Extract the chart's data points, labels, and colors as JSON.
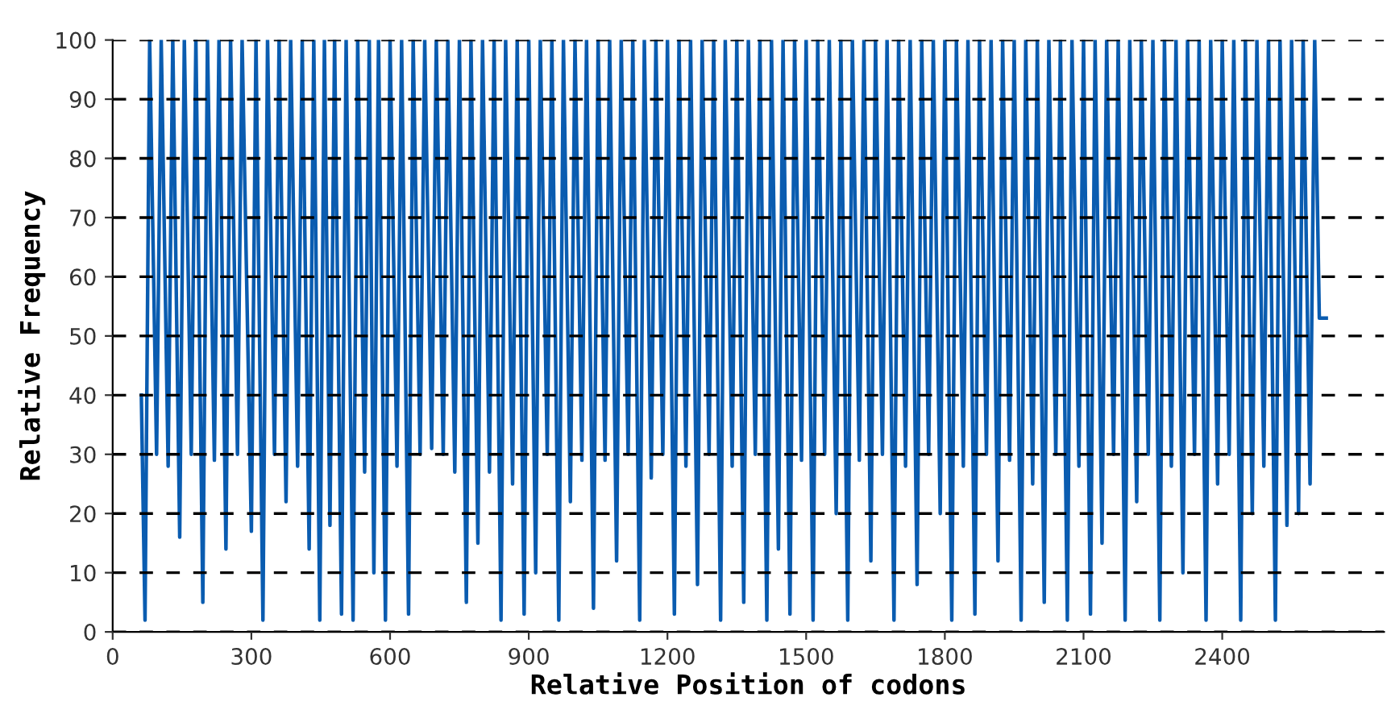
{
  "chart_data": {
    "type": "line",
    "xlabel": "Relative Position of codons",
    "ylabel": "Relative Frequency",
    "xlim": [
      0,
      2750
    ],
    "xticks": [
      0,
      300,
      600,
      900,
      1200,
      1500,
      1800,
      2100,
      2400
    ],
    "ylim": [
      0,
      100
    ],
    "yticks": [
      0,
      10,
      20,
      30,
      40,
      50,
      60,
      70,
      80,
      90,
      100
    ],
    "grid": "y",
    "marker": "none",
    "line_style": "solid",
    "series": [
      {
        "color": "#0a5cb0",
        "x": [
          62,
          70,
          80,
          95,
          105,
          120,
          130,
          145,
          155,
          170,
          180,
          195,
          205,
          220,
          230,
          245,
          255,
          270,
          280,
          300,
          310,
          325,
          335,
          350,
          360,
          375,
          385,
          400,
          410,
          425,
          435,
          448,
          458,
          470,
          480,
          495,
          505,
          520,
          530,
          545,
          555,
          565,
          575,
          590,
          600,
          615,
          625,
          640,
          650,
          665,
          675,
          690,
          700,
          715,
          725,
          740,
          750,
          765,
          775,
          790,
          800,
          815,
          825,
          840,
          850,
          865,
          875,
          890,
          900,
          915,
          925,
          940,
          950,
          965,
          975,
          990,
          1000,
          1015,
          1025,
          1040,
          1050,
          1065,
          1075,
          1090,
          1100,
          1115,
          1125,
          1140,
          1150,
          1165,
          1175,
          1190,
          1200,
          1215,
          1225,
          1240,
          1250,
          1265,
          1275,
          1290,
          1300,
          1315,
          1325,
          1340,
          1350,
          1365,
          1375,
          1390,
          1400,
          1415,
          1425,
          1440,
          1450,
          1465,
          1475,
          1490,
          1500,
          1515,
          1525,
          1540,
          1550,
          1565,
          1575,
          1590,
          1600,
          1615,
          1625,
          1640,
          1650,
          1665,
          1675,
          1690,
          1700,
          1715,
          1725,
          1740,
          1750,
          1765,
          1775,
          1790,
          1800,
          1815,
          1825,
          1840,
          1850,
          1865,
          1875,
          1890,
          1900,
          1915,
          1925,
          1940,
          1950,
          1965,
          1975,
          1990,
          2000,
          2015,
          2025,
          2040,
          2050,
          2065,
          2075,
          2090,
          2100,
          2115,
          2125,
          2140,
          2150,
          2165,
          2175,
          2190,
          2200,
          2215,
          2225,
          2240,
          2250,
          2265,
          2275,
          2290,
          2300,
          2315,
          2325,
          2340,
          2350,
          2365,
          2375,
          2390,
          2400,
          2415,
          2425,
          2440,
          2450,
          2465,
          2475,
          2490,
          2500,
          2515,
          2525,
          2540,
          2550,
          2565,
          2575,
          2590,
          2600,
          2610,
          2625
        ],
        "values": [
          40,
          2,
          100,
          30,
          100,
          28,
          100,
          16,
          100,
          30,
          100,
          5,
          100,
          29,
          100,
          14,
          100,
          30,
          100,
          17,
          100,
          2,
          100,
          30,
          100,
          22,
          100,
          28,
          100,
          14,
          100,
          2,
          100,
          18,
          100,
          3,
          100,
          2,
          100,
          27,
          100,
          10,
          100,
          2,
          100,
          28,
          100,
          3,
          100,
          30,
          100,
          31,
          100,
          30,
          100,
          27,
          100,
          5,
          100,
          15,
          100,
          27,
          100,
          2,
          100,
          25,
          100,
          3,
          100,
          10,
          100,
          30,
          100,
          2,
          100,
          22,
          100,
          29,
          100,
          4,
          100,
          29,
          100,
          12,
          100,
          30,
          100,
          2,
          100,
          26,
          100,
          30,
          100,
          3,
          100,
          28,
          100,
          8,
          100,
          30,
          100,
          2,
          100,
          28,
          100,
          5,
          100,
          30,
          100,
          2,
          100,
          14,
          100,
          3,
          100,
          29,
          100,
          2,
          100,
          30,
          100,
          20,
          100,
          2,
          100,
          29,
          100,
          12,
          100,
          30,
          100,
          2,
          100,
          28,
          100,
          8,
          100,
          30,
          100,
          20,
          100,
          2,
          100,
          28,
          100,
          3,
          100,
          30,
          100,
          12,
          100,
          29,
          100,
          2,
          100,
          25,
          100,
          5,
          100,
          30,
          100,
          2,
          100,
          28,
          100,
          3,
          100,
          15,
          100,
          30,
          100,
          2,
          100,
          22,
          100,
          30,
          100,
          2,
          100,
          28,
          100,
          10,
          100,
          30,
          100,
          2,
          100,
          25,
          100,
          30,
          100,
          2,
          100,
          20,
          100,
          28,
          100,
          2,
          100,
          18,
          100,
          20,
          100,
          25,
          100,
          53,
          53
        ]
      }
    ]
  }
}
